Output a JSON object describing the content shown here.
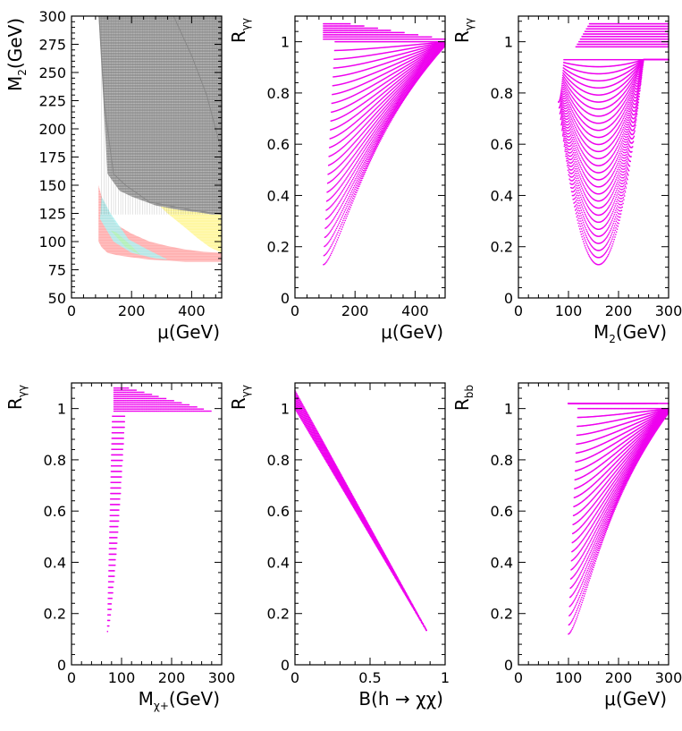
{
  "figure": {
    "colors": {
      "points": "#ee00ee",
      "gray": "#999999",
      "yellow": "#fff7a0",
      "red": "#ffb0b0",
      "cyan": "#a8f0f0",
      "green": "#b0f0b0"
    }
  },
  "chart_data": [
    {
      "id": "p1",
      "type": "heatmap",
      "title": "",
      "xlabel": {
        "prefix": "μ",
        "sub": "",
        "suffix": "(GeV)"
      },
      "ylabel": {
        "prefix": "M",
        "sub": "2",
        "suffix": "(GeV)"
      },
      "xlim": [
        0,
        500
      ],
      "ylim": [
        50,
        300
      ],
      "xticks": [
        0,
        200,
        400
      ],
      "yticks": [
        50,
        75,
        100,
        125,
        150,
        175,
        200,
        225,
        250,
        275,
        300
      ],
      "regions": [
        {
          "name": "yellow",
          "color": "yellow",
          "mu": [
            90,
            90,
            100,
            120,
            150,
            200,
            260,
            320,
            380,
            420,
            460,
            500,
            500
          ],
          "m2_min": [
            300,
            300,
            280,
            250,
            210,
            170,
            140,
            125,
            112,
            103,
            95,
            90,
            300
          ]
        },
        {
          "name": "red",
          "color": "red",
          "mu": [
            90,
            100,
            120,
            150,
            200,
            260,
            320,
            380,
            440,
            500
          ],
          "m2_low": [
            100,
            95,
            90,
            88,
            86,
            84,
            83,
            82,
            82,
            82
          ],
          "m2_high": [
            150,
            140,
            128,
            115,
            107,
            100,
            96,
            93,
            91,
            90
          ]
        },
        {
          "name": "gray",
          "color": "gray",
          "mu": [
            90,
            120,
            160,
            200,
            280,
            360,
            420,
            470,
            500
          ],
          "m2_low": [
            300,
            160,
            145,
            140,
            132,
            128,
            126,
            124,
            124
          ],
          "m2_high": [
            300,
            300,
            300,
            300,
            300,
            300,
            300,
            300,
            300
          ]
        }
      ],
      "region_edges": [
        {
          "color": "gray",
          "points": [
            [
              92,
              300
            ],
            [
              110,
              220
            ],
            [
              140,
              160
            ],
            [
              180,
              150
            ],
            [
              260,
              135
            ],
            [
              400,
              128
            ],
            [
              500,
              124
            ]
          ]
        },
        {
          "color": "gray",
          "points": [
            [
              340,
              300
            ],
            [
              400,
              265
            ],
            [
              450,
              230
            ],
            [
              480,
              200
            ],
            [
              500,
              180
            ]
          ]
        }
      ]
    },
    {
      "id": "p2",
      "type": "scatter",
      "title": "",
      "xlabel": {
        "prefix": "μ",
        "sub": "",
        "suffix": "(GeV)"
      },
      "ylabel": {
        "prefix": "R",
        "sub": "γγ",
        "suffix": ""
      },
      "xlim": [
        0,
        500
      ],
      "ylim": [
        0,
        1.1
      ],
      "xticks": [
        0,
        200,
        400
      ],
      "yticks": [
        0,
        0.2,
        0.4,
        0.6,
        0.8,
        1
      ],
      "series": [
        {
          "name": "scan",
          "curve_family": "dip",
          "x_range": [
            95,
            500
          ],
          "min_y": 0.13,
          "min_x": 105,
          "upper_y": 1.0,
          "band_y": [
            1.01,
            1.07
          ]
        }
      ]
    },
    {
      "id": "p3",
      "type": "scatter",
      "title": "",
      "xlabel": {
        "prefix": "M",
        "sub": "2",
        "suffix": "(GeV)"
      },
      "ylabel": {
        "prefix": "R",
        "sub": "γγ",
        "suffix": ""
      },
      "xlim": [
        0,
        300
      ],
      "ylim": [
        0,
        1.1
      ],
      "xticks": [
        0,
        100,
        200,
        300
      ],
      "yticks": [
        0,
        0.2,
        0.4,
        0.6,
        0.8,
        1
      ],
      "series": [
        {
          "name": "scan",
          "curve_family": "bowl",
          "x_range": [
            80,
            300
          ],
          "min_y": 0.13,
          "min_x": 160,
          "upper_y": 0.93,
          "band_y": [
            0.98,
            1.07
          ]
        }
      ]
    },
    {
      "id": "p4",
      "type": "scatter",
      "title": "",
      "xlabel": {
        "prefix": "M",
        "sub": "χ+",
        "suffix": "(GeV)"
      },
      "ylabel": {
        "prefix": "R",
        "sub": "γγ",
        "suffix": ""
      },
      "xlim": [
        0,
        300
      ],
      "ylim": [
        0,
        1.1
      ],
      "xticks": [
        0,
        100,
        200,
        300
      ],
      "yticks": [
        0,
        0.2,
        0.4,
        0.6,
        0.8,
        1
      ],
      "series": [
        {
          "name": "scan",
          "curve_family": "wedge",
          "x_range": [
            70,
            280
          ],
          "min_y": 0.13,
          "min_x": 72,
          "upper_y": 1.0,
          "band_y": [
            0.99,
            1.08
          ]
        }
      ]
    },
    {
      "id": "p5",
      "type": "scatter",
      "title": "",
      "xlabel": {
        "prefix": "B(h → χχ)",
        "sub": "",
        "suffix": ""
      },
      "ylabel": {
        "prefix": "R",
        "sub": "γγ",
        "suffix": ""
      },
      "xlim": [
        0,
        1
      ],
      "ylim": [
        0,
        1.1
      ],
      "xticks": [
        0,
        0.5,
        1
      ],
      "xticklabels": [
        "0",
        "0.5",
        "1"
      ],
      "yticks": [
        0,
        0.2,
        0.4,
        0.6,
        0.8,
        1
      ],
      "series": [
        {
          "name": "scan",
          "curve_family": "line",
          "x_range": [
            0,
            0.88
          ],
          "y_at_start": [
            1.0,
            1.07
          ],
          "y_at_end": 0.13
        }
      ]
    },
    {
      "id": "p6",
      "type": "scatter",
      "title": "",
      "xlabel": {
        "prefix": "μ",
        "sub": "",
        "suffix": "(GeV)"
      },
      "ylabel": {
        "prefix": "R",
        "sub": "bb",
        "suffix": ""
      },
      "xlim": [
        0,
        300
      ],
      "ylim": [
        0,
        1.1
      ],
      "xticks": [
        0,
        100,
        200,
        300
      ],
      "yticks": [
        0,
        0.2,
        0.4,
        0.6,
        0.8,
        1
      ],
      "series": [
        {
          "name": "scan",
          "curve_family": "dip",
          "x_range": [
            100,
            300
          ],
          "min_y": 0.12,
          "min_x": 110,
          "upper_y": 1.0,
          "band_y": [
            1.02,
            1.02
          ]
        }
      ]
    }
  ]
}
